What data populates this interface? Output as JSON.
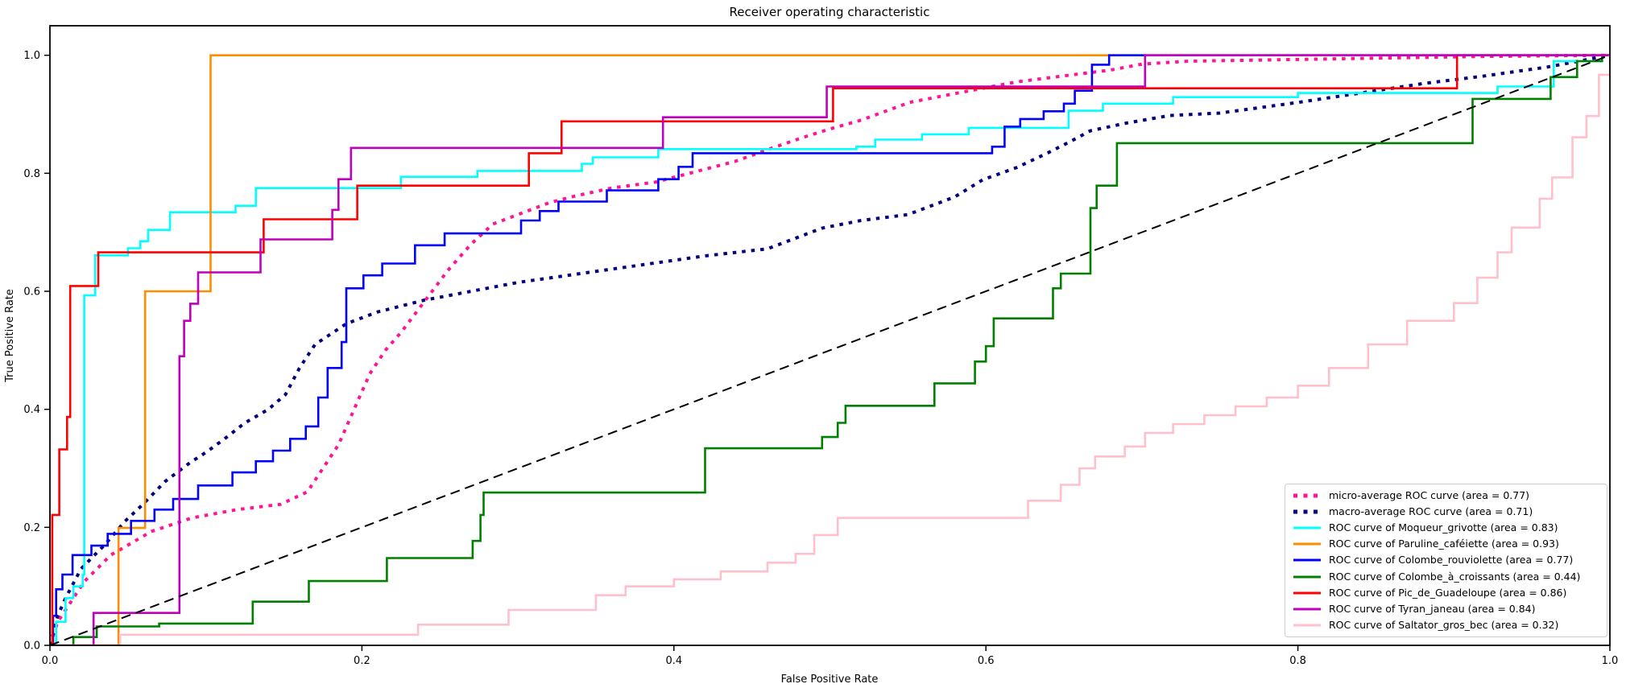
{
  "title": "Receiver operating characteristic",
  "chart_data": {
    "type": "line",
    "title": "Receiver operating characteristic",
    "xlabel": "False Positive Rate",
    "ylabel": "True Positive Rate",
    "xlim": [
      0.0,
      1.0
    ],
    "ylim": [
      0.0,
      1.05
    ],
    "x_tick_labels": [
      "0.0",
      "0.2",
      "0.4",
      "0.6",
      "0.8",
      "1.0"
    ],
    "x_tick_values": [
      0.0,
      0.2,
      0.4,
      0.6,
      0.8,
      1.0
    ],
    "y_tick_labels": [
      "0.0",
      "0.2",
      "0.4",
      "0.6",
      "0.8",
      "1.0"
    ],
    "y_tick_values": [
      0.0,
      0.2,
      0.4,
      0.6,
      0.8,
      1.0
    ],
    "grid": false,
    "legend_position": "lower right",
    "series": [
      {
        "name": "micro-average ROC curve (area = 0.77)",
        "color": "#FF1493",
        "style": "dotted",
        "width": 4,
        "step": false,
        "in_legend": true,
        "points": [
          [
            0,
            0
          ],
          [
            0.005,
            0.04
          ],
          [
            0.01,
            0.06
          ],
          [
            0.022,
            0.108
          ],
          [
            0.039,
            0.153
          ],
          [
            0.065,
            0.193
          ],
          [
            0.091,
            0.216
          ],
          [
            0.12,
            0.23
          ],
          [
            0.148,
            0.239
          ],
          [
            0.165,
            0.26
          ],
          [
            0.175,
            0.3
          ],
          [
            0.185,
            0.34
          ],
          [
            0.195,
            0.4
          ],
          [
            0.205,
            0.46
          ],
          [
            0.215,
            0.5
          ],
          [
            0.225,
            0.53
          ],
          [
            0.235,
            0.565
          ],
          [
            0.245,
            0.6
          ],
          [
            0.255,
            0.635
          ],
          [
            0.27,
            0.68
          ],
          [
            0.284,
            0.714
          ],
          [
            0.3,
            0.73
          ],
          [
            0.32,
            0.75
          ],
          [
            0.336,
            0.761
          ],
          [
            0.36,
            0.775
          ],
          [
            0.388,
            0.785
          ],
          [
            0.41,
            0.8
          ],
          [
            0.439,
            0.82
          ],
          [
            0.46,
            0.84
          ],
          [
            0.483,
            0.861
          ],
          [
            0.5,
            0.875
          ],
          [
            0.52,
            0.89
          ],
          [
            0.551,
            0.92
          ],
          [
            0.58,
            0.935
          ],
          [
            0.6,
            0.945
          ],
          [
            0.62,
            0.955
          ],
          [
            0.65,
            0.965
          ],
          [
            0.68,
            0.975
          ],
          [
            0.7,
            0.985
          ],
          [
            0.73,
            0.99
          ],
          [
            0.78,
            0.992
          ],
          [
            0.85,
            0.995
          ],
          [
            0.92,
            0.998
          ],
          [
            1,
            1
          ]
        ]
      },
      {
        "name": "macro-average ROC curve (area = 0.71)",
        "color": "#000080",
        "style": "dotted",
        "width": 4,
        "step": false,
        "in_legend": true,
        "points": [
          [
            0,
            0
          ],
          [
            0.005,
            0.05
          ],
          [
            0.01,
            0.08
          ],
          [
            0.02,
            0.13
          ],
          [
            0.035,
            0.17
          ],
          [
            0.048,
            0.21
          ],
          [
            0.06,
            0.24
          ],
          [
            0.074,
            0.278
          ],
          [
            0.09,
            0.31
          ],
          [
            0.1,
            0.327
          ],
          [
            0.112,
            0.35
          ],
          [
            0.125,
            0.377
          ],
          [
            0.14,
            0.4
          ],
          [
            0.151,
            0.425
          ],
          [
            0.16,
            0.47
          ],
          [
            0.17,
            0.51
          ],
          [
            0.19,
            0.545
          ],
          [
            0.21,
            0.565
          ],
          [
            0.24,
            0.585
          ],
          [
            0.27,
            0.6
          ],
          [
            0.3,
            0.615
          ],
          [
            0.34,
            0.63
          ],
          [
            0.38,
            0.645
          ],
          [
            0.42,
            0.66
          ],
          [
            0.46,
            0.672
          ],
          [
            0.495,
            0.707
          ],
          [
            0.52,
            0.72
          ],
          [
            0.55,
            0.73
          ],
          [
            0.58,
            0.76
          ],
          [
            0.598,
            0.789
          ],
          [
            0.62,
            0.81
          ],
          [
            0.64,
            0.835
          ],
          [
            0.655,
            0.855
          ],
          [
            0.667,
            0.872
          ],
          [
            0.69,
            0.885
          ],
          [
            0.718,
            0.898
          ],
          [
            0.75,
            0.902
          ],
          [
            0.8,
            0.92
          ],
          [
            0.85,
            0.94
          ],
          [
            0.88,
            0.952
          ],
          [
            0.92,
            0.965
          ],
          [
            0.96,
            0.98
          ],
          [
            1,
            1
          ]
        ]
      },
      {
        "name": "ROC curve of Moqueur_grivotte (area = 0.83)",
        "color": "#00FFFF",
        "style": "solid",
        "width": 2.6,
        "step": true,
        "in_legend": true,
        "points": [
          [
            0,
            0
          ],
          [
            0.004,
            0.04
          ],
          [
            0.01,
            0.08
          ],
          [
            0.015,
            0.1
          ],
          [
            0.021,
            0.12
          ],
          [
            0.022,
            0.593
          ],
          [
            0.029,
            0.661
          ],
          [
            0.05,
            0.673
          ],
          [
            0.058,
            0.685
          ],
          [
            0.063,
            0.704
          ],
          [
            0.077,
            0.734
          ],
          [
            0.119,
            0.745
          ],
          [
            0.132,
            0.775
          ],
          [
            0.225,
            0.794
          ],
          [
            0.274,
            0.804
          ],
          [
            0.341,
            0.816
          ],
          [
            0.348,
            0.827
          ],
          [
            0.39,
            0.841
          ],
          [
            0.517,
            0.845
          ],
          [
            0.529,
            0.857
          ],
          [
            0.559,
            0.866
          ],
          [
            0.589,
            0.877
          ],
          [
            0.653,
            0.906
          ],
          [
            0.675,
            0.918
          ],
          [
            0.72,
            0.929
          ],
          [
            0.8,
            0.936
          ],
          [
            0.928,
            0.947
          ],
          [
            0.964,
            0.99
          ],
          [
            0.995,
            1.0
          ],
          [
            1,
            1
          ]
        ]
      },
      {
        "name": "ROC curve of Paruline_caféiette (area = 0.93)",
        "color": "#FF8C00",
        "style": "solid",
        "width": 2.6,
        "step": true,
        "in_legend": true,
        "points": [
          [
            0,
            0
          ],
          [
            0.044,
            0.199
          ],
          [
            0.061,
            0.6
          ],
          [
            0.103,
            1.0
          ],
          [
            1,
            1
          ]
        ]
      },
      {
        "name": "ROC curve of Colombe_rouviolette (area = 0.77)",
        "color": "#0000FF",
        "style": "solid",
        "width": 2.6,
        "step": true,
        "in_legend": true,
        "points": [
          [
            0,
            0
          ],
          [
            0.002,
            0.05
          ],
          [
            0.004,
            0.095
          ],
          [
            0.008,
            0.12
          ],
          [
            0.0145,
            0.153
          ],
          [
            0.0266,
            0.169
          ],
          [
            0.037,
            0.189
          ],
          [
            0.052,
            0.211
          ],
          [
            0.067,
            0.23
          ],
          [
            0.079,
            0.248
          ],
          [
            0.095,
            0.271
          ],
          [
            0.117,
            0.293
          ],
          [
            0.132,
            0.312
          ],
          [
            0.143,
            0.33
          ],
          [
            0.154,
            0.35
          ],
          [
            0.164,
            0.371
          ],
          [
            0.172,
            0.42
          ],
          [
            0.178,
            0.47
          ],
          [
            0.187,
            0.514
          ],
          [
            0.19,
            0.605
          ],
          [
            0.201,
            0.627
          ],
          [
            0.213,
            0.647
          ],
          [
            0.234,
            0.678
          ],
          [
            0.253,
            0.698
          ],
          [
            0.302,
            0.72
          ],
          [
            0.314,
            0.736
          ],
          [
            0.326,
            0.752
          ],
          [
            0.357,
            0.771
          ],
          [
            0.39,
            0.79
          ],
          [
            0.403,
            0.811
          ],
          [
            0.412,
            0.834
          ],
          [
            0.604,
            0.845
          ],
          [
            0.612,
            0.879
          ],
          [
            0.622,
            0.892
          ],
          [
            0.637,
            0.905
          ],
          [
            0.65,
            0.918
          ],
          [
            0.657,
            0.94
          ],
          [
            0.668,
            0.984
          ],
          [
            0.679,
            1.0
          ],
          [
            1,
            1
          ]
        ]
      },
      {
        "name": "ROC curve of Colombe_à_croissants (area = 0.44)",
        "color": "#008000",
        "style": "solid",
        "width": 2.6,
        "step": true,
        "in_legend": true,
        "points": [
          [
            0,
            0
          ],
          [
            0.015,
            0.014
          ],
          [
            0.03,
            0.032
          ],
          [
            0.07,
            0.037
          ],
          [
            0.13,
            0.074
          ],
          [
            0.166,
            0.109
          ],
          [
            0.216,
            0.148
          ],
          [
            0.271,
            0.177
          ],
          [
            0.276,
            0.221
          ],
          [
            0.278,
            0.259
          ],
          [
            0.42,
            0.334
          ],
          [
            0.495,
            0.353
          ],
          [
            0.505,
            0.377
          ],
          [
            0.51,
            0.406
          ],
          [
            0.567,
            0.444
          ],
          [
            0.593,
            0.481
          ],
          [
            0.6,
            0.507
          ],
          [
            0.605,
            0.554
          ],
          [
            0.643,
            0.605
          ],
          [
            0.648,
            0.63
          ],
          [
            0.667,
            0.741
          ],
          [
            0.671,
            0.779
          ],
          [
            0.684,
            0.851
          ],
          [
            0.912,
            0.926
          ],
          [
            0.962,
            0.963
          ],
          [
            0.979,
            0.99
          ],
          [
            0.995,
            1.0
          ],
          [
            1,
            1
          ]
        ]
      },
      {
        "name": "ROC curve of Pic_de_Guadeloupe (area = 0.86)",
        "color": "#FF0000",
        "style": "solid",
        "width": 2.6,
        "step": true,
        "in_legend": true,
        "points": [
          [
            0,
            0
          ],
          [
            0.0015,
            0.221
          ],
          [
            0.006,
            0.332
          ],
          [
            0.011,
            0.387
          ],
          [
            0.013,
            0.609
          ],
          [
            0.031,
            0.666
          ],
          [
            0.137,
            0.722
          ],
          [
            0.197,
            0.779
          ],
          [
            0.307,
            0.834
          ],
          [
            0.328,
            0.888
          ],
          [
            0.502,
            0.944
          ],
          [
            0.902,
            1.0
          ],
          [
            1,
            1
          ]
        ]
      },
      {
        "name": "ROC curve of Tyran_janeau (area = 0.84)",
        "color": "#BF00BF",
        "style": "solid",
        "width": 2.6,
        "step": true,
        "in_legend": true,
        "points": [
          [
            0,
            0
          ],
          [
            0.028,
            0.055
          ],
          [
            0.083,
            0.49
          ],
          [
            0.086,
            0.55
          ],
          [
            0.09,
            0.579
          ],
          [
            0.095,
            0.632
          ],
          [
            0.135,
            0.688
          ],
          [
            0.181,
            0.738
          ],
          [
            0.185,
            0.79
          ],
          [
            0.193,
            0.843
          ],
          [
            0.393,
            0.895
          ],
          [
            0.498,
            0.947
          ],
          [
            0.702,
            1.0
          ],
          [
            1,
            1
          ]
        ]
      },
      {
        "name": "ROC curve of Saltator_gros_bec (area = 0.32)",
        "color": "#FFC0CB",
        "style": "solid",
        "width": 2.6,
        "step": true,
        "in_legend": true,
        "points": [
          [
            0,
            0
          ],
          [
            0.045,
            0.018
          ],
          [
            0.236,
            0.035
          ],
          [
            0.294,
            0.06
          ],
          [
            0.35,
            0.085
          ],
          [
            0.369,
            0.1
          ],
          [
            0.4,
            0.112
          ],
          [
            0.43,
            0.125
          ],
          [
            0.46,
            0.14
          ],
          [
            0.478,
            0.155
          ],
          [
            0.49,
            0.187
          ],
          [
            0.505,
            0.216
          ],
          [
            0.627,
            0.245
          ],
          [
            0.648,
            0.272
          ],
          [
            0.66,
            0.3
          ],
          [
            0.67,
            0.32
          ],
          [
            0.689,
            0.337
          ],
          [
            0.702,
            0.36
          ],
          [
            0.72,
            0.375
          ],
          [
            0.74,
            0.39
          ],
          [
            0.76,
            0.405
          ],
          [
            0.78,
            0.42
          ],
          [
            0.8,
            0.44
          ],
          [
            0.82,
            0.47
          ],
          [
            0.845,
            0.51
          ],
          [
            0.87,
            0.55
          ],
          [
            0.9,
            0.58
          ],
          [
            0.915,
            0.623
          ],
          [
            0.928,
            0.666
          ],
          [
            0.937,
            0.708
          ],
          [
            0.955,
            0.757
          ],
          [
            0.963,
            0.793
          ],
          [
            0.976,
            0.861
          ],
          [
            0.985,
            0.897
          ],
          [
            0.993,
            0.967
          ],
          [
            1,
            1
          ]
        ]
      },
      {
        "name": "chance-diagonal",
        "color": "#000000",
        "style": "dashed",
        "width": 2,
        "step": false,
        "in_legend": false,
        "points": [
          [
            0,
            0
          ],
          [
            1,
            1
          ]
        ]
      }
    ]
  }
}
